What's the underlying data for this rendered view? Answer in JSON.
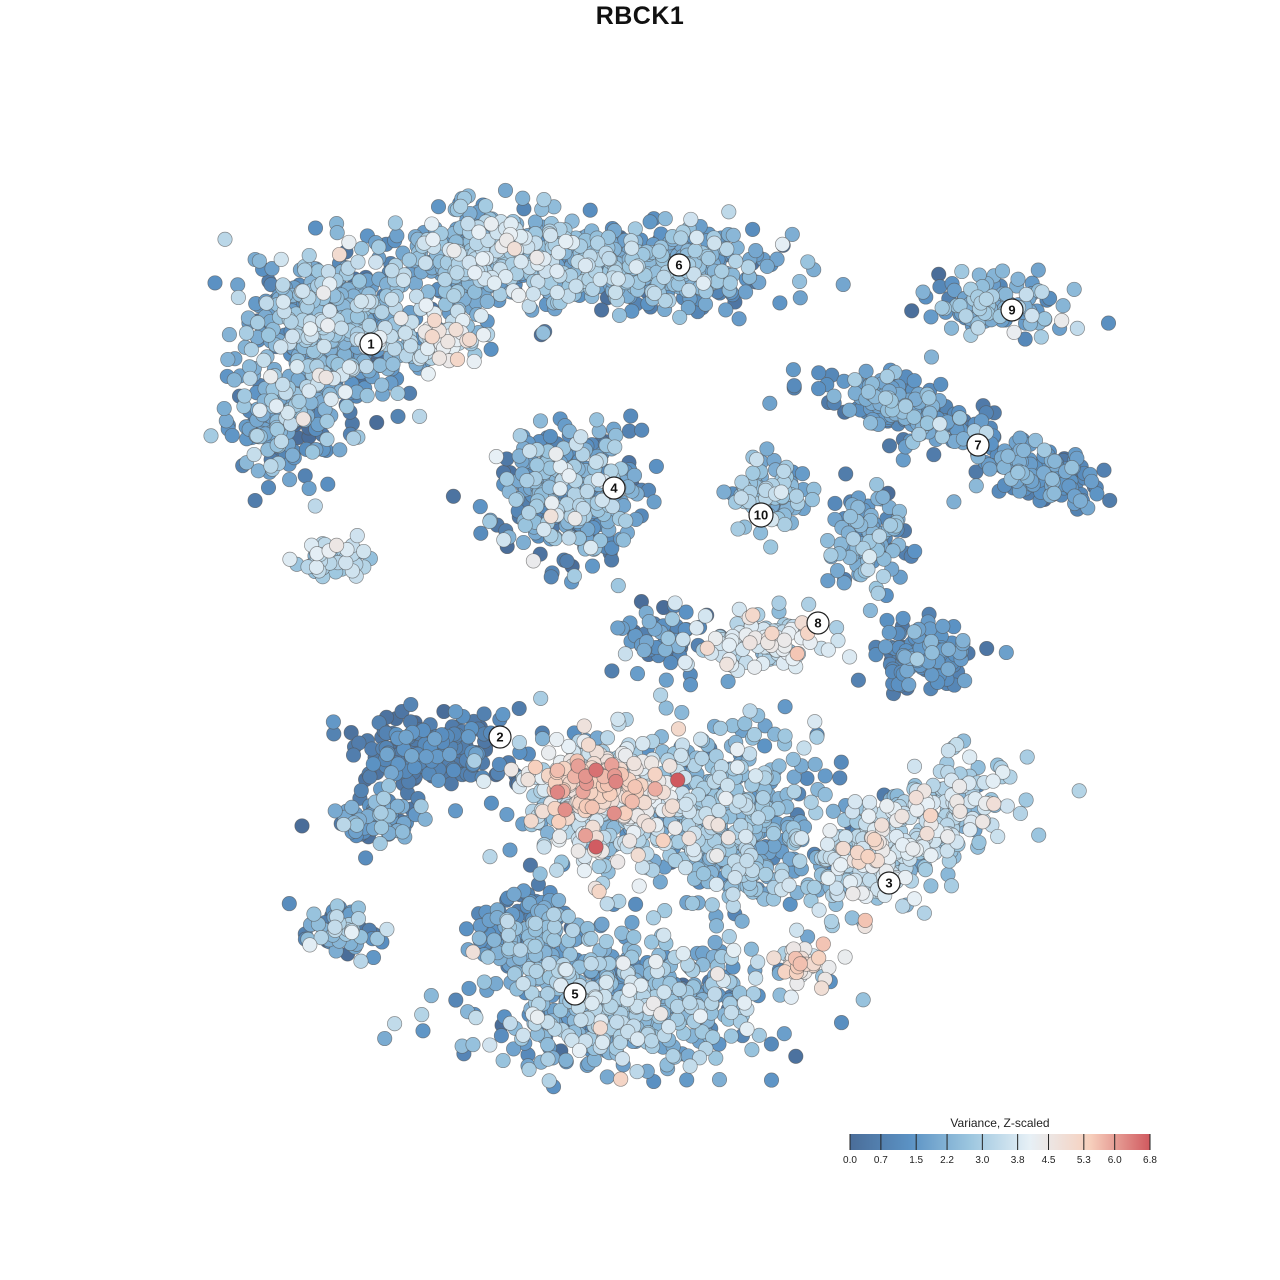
{
  "chart_data": {
    "type": "scatter",
    "title": "RBCK1",
    "xlabel": "",
    "ylabel": "",
    "color_scale": {
      "title": "Variance, Z-scaled",
      "min": 0.0,
      "max": 6.8,
      "ticks": [
        0.0,
        0.7,
        1.5,
        2.2,
        3.0,
        3.8,
        4.5,
        5.3,
        6.0,
        6.8
      ],
      "tick_labels": [
        "0.0",
        "0.7",
        "1.5",
        "2.2",
        "3.0",
        "3.8",
        "4.5",
        "5.3",
        "6.0",
        "6.8"
      ],
      "colors": [
        "#4a6d99",
        "#5b92c4",
        "#9cc6df",
        "#e7f0f6",
        "#f7d0bd",
        "#d0595f"
      ]
    },
    "grid": false,
    "axes_visible": false,
    "legend": "bottom-right",
    "cluster_labels": [
      "1",
      "2",
      "3",
      "4",
      "5",
      "6",
      "7",
      "8",
      "9",
      "10"
    ]
  }
}
